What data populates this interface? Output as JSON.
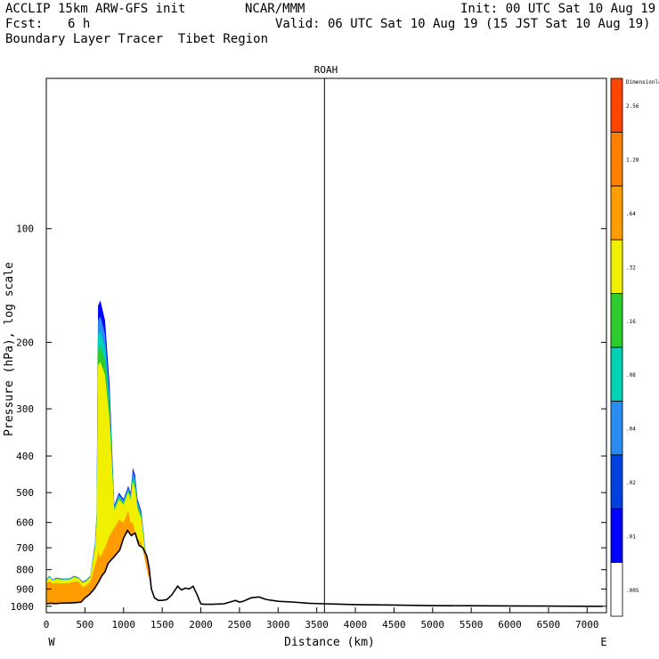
{
  "header": {
    "model": "ACCLIP 15km ARW-GFS init",
    "org": "NCAR/MMM",
    "init": "Init: 00 UTC Sat 10 Aug 19",
    "fcst_label": "Fcst:",
    "fcst_value": "6 h",
    "valid": "Valid: 06 UTC Sat 10 Aug 19 (15 JST Sat 10 Aug 19)",
    "product": "Boundary Layer Tracer  Tibet Region"
  },
  "chart_data": {
    "type": "area",
    "station_label": "ROAH",
    "xlabel": "Distance (km)",
    "ylabel": "Pressure (hPa), log scale",
    "x_ticks": [
      0,
      500,
      1000,
      1500,
      2000,
      2500,
      3000,
      3500,
      4000,
      4500,
      5000,
      5500,
      6000,
      6500,
      7000
    ],
    "y_ticks": [
      100,
      200,
      300,
      400,
      500,
      600,
      700,
      800,
      900,
      1000
    ],
    "xlim": [
      0,
      7250
    ],
    "ylim": [
      1040,
      40
    ],
    "log_y": true,
    "left_end_label": "W",
    "right_end_label": "E",
    "vertical_marker_km": 3600,
    "colorbar": {
      "levels": [
        ".005",
        ".01",
        ".02",
        ".04",
        ".08",
        ".16",
        ".32",
        ".64",
        "1.28",
        "2.56",
        "Dimensionless"
      ],
      "colors": [
        "#ffffff",
        "#0000ff",
        "#0040e0",
        "#2a8cf0",
        "#00d2b4",
        "#2ccc2c",
        "#f0f000",
        "#ff9c00",
        "#ff8000",
        "#ff4400"
      ]
    },
    "terrain_profile": {
      "distance_km": [
        0,
        60,
        120,
        200,
        300,
        380,
        450,
        500,
        560,
        620,
        650,
        680,
        720,
        760,
        800,
        850,
        900,
        950,
        1000,
        1050,
        1100,
        1150,
        1200,
        1250,
        1300,
        1330,
        1360,
        1400,
        1450,
        1500,
        1560,
        1620,
        1700,
        1750,
        1800,
        1850,
        1900,
        1950,
        2000,
        2050,
        2150,
        2300,
        2450,
        2500,
        2550,
        2650,
        2750,
        2850,
        3000,
        3200,
        3400,
        3600,
        4000,
        4500,
        5000,
        5500,
        6000,
        6500,
        7000,
        7200
      ],
      "pressure_hPa": [
        985,
        982,
        984,
        981,
        980,
        978,
        975,
        950,
        930,
        900,
        880,
        860,
        830,
        810,
        770,
        750,
        730,
        710,
        660,
        630,
        650,
        640,
        690,
        700,
        735,
        790,
        900,
        950,
        965,
        965,
        960,
        935,
        885,
        905,
        895,
        900,
        885,
        930,
        985,
        988,
        988,
        985,
        965,
        975,
        970,
        950,
        945,
        960,
        970,
        975,
        982,
        985,
        990,
        993,
        996,
        997,
        998,
        999,
        1000,
        1000
      ]
    },
    "tracer_regions": [
      {
        "name": "boundary-layer-tracer",
        "distance_km": [
          0,
          40,
          80,
          130,
          200,
          300,
          360,
          420,
          470,
          520,
          570,
          600,
          630,
          650,
          670,
          700,
          760,
          820,
          880,
          940,
          1000,
          1060,
          1090,
          1120,
          1150,
          1180,
          1230,
          1280,
          1300,
          1330
        ],
        "top_pressure_hPa": [
          850,
          830,
          850,
          840,
          845,
          845,
          830,
          840,
          860,
          850,
          830,
          750,
          680,
          570,
          160,
          155,
          175,
          260,
          540,
          500,
          520,
          480,
          500,
          430,
          450,
          520,
          560,
          700,
          760,
          820
        ],
        "orange_top_pressure_hPa": [
          870,
          860,
          870,
          868,
          870,
          868,
          860,
          860,
          890,
          880,
          860,
          820,
          780,
          760,
          720,
          740,
          700,
          650,
          620,
          590,
          600,
          560,
          600,
          600,
          640,
          660,
          680,
          760,
          800,
          850
        ]
      }
    ]
  }
}
